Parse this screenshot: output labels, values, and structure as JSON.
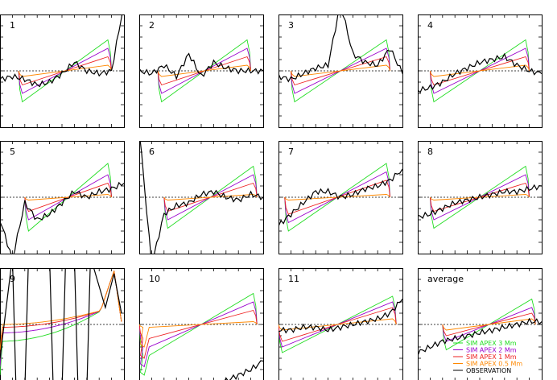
{
  "chart_data": {
    "type": "line",
    "layout": "grid-3x4",
    "x": [
      0,
      10,
      20,
      30,
      40,
      50,
      60,
      70,
      80,
      90,
      100
    ],
    "ylim": [
      -1,
      1
    ],
    "reference_line": {
      "y": 0,
      "style": "dotted"
    },
    "series_colors": {
      "SIM APEX 3 Mm": "#22dd22",
      "SIM APEX 2 Mm": "#9900cc",
      "SIM APEX 1 Mm": "#ee2222",
      "SIM APEX 0.5 Mm": "#ff8800",
      "OBSERVATION": "#000000"
    },
    "legend": {
      "panel": "average",
      "placement": "bottom-right",
      "entries": [
        {
          "name": "SIM APEX 3 Mm",
          "color": "#22dd22"
        },
        {
          "name": "SIM APEX 2 Mm",
          "color": "#9900cc"
        },
        {
          "name": "SIM APEX 1 Mm",
          "color": "#ee2222"
        },
        {
          "name": "SIM APEX 0.5 Mm",
          "color": "#ff8800"
        },
        {
          "name": "OBSERVATION",
          "color": "#000000"
        }
      ]
    },
    "panels": [
      {
        "label": "1",
        "kind": "linear",
        "xstart": 15,
        "xend": 90,
        "amp": [
          0.55,
          0.4,
          0.25,
          0.1
        ],
        "observation": [
          -0.15,
          -0.1,
          -0.15,
          -0.25,
          -0.2,
          -0.05,
          0.15,
          0.0,
          -0.05,
          0.0,
          1.2
        ]
      },
      {
        "label": "2",
        "kind": "linear",
        "xstart": 15,
        "xend": 90,
        "amp": [
          0.55,
          0.4,
          0.25,
          0.1
        ],
        "observation": [
          0.0,
          -0.05,
          0.1,
          -0.1,
          0.3,
          -0.1,
          0.15,
          0.05,
          0.0,
          0.0,
          0.0
        ]
      },
      {
        "label": "3",
        "kind": "linear",
        "xstart": 10,
        "xend": 90,
        "amp": [
          0.55,
          0.4,
          0.25,
          0.1
        ],
        "observation": [
          -0.1,
          -0.15,
          -0.05,
          0.05,
          0.1,
          1.2,
          0.3,
          0.15,
          0.1,
          0.4,
          -0.05
        ]
      },
      {
        "label": "4",
        "kind": "linear",
        "xstart": 10,
        "xend": 90,
        "amp": [
          0.55,
          0.4,
          0.25,
          0.1
        ],
        "observation": [
          -0.35,
          -0.3,
          -0.2,
          -0.05,
          0.05,
          0.15,
          0.2,
          0.25,
          0.1,
          0.0,
          -0.05
        ]
      },
      {
        "label": "5",
        "kind": "linear",
        "xstart": 20,
        "xend": 90,
        "amp": [
          0.6,
          0.4,
          0.25,
          0.05
        ],
        "observation": [
          -0.4,
          -1.1,
          -0.1,
          -0.4,
          -0.3,
          -0.1,
          0.1,
          0.0,
          0.1,
          0.15,
          0.25
        ]
      },
      {
        "label": "6",
        "kind": "linear",
        "xstart": 20,
        "xend": 95,
        "amp": [
          0.55,
          0.4,
          0.25,
          0.05
        ],
        "observation": [
          1.2,
          -1.2,
          -0.3,
          -0.15,
          -0.1,
          0.05,
          0.1,
          0.0,
          -0.05,
          0.05,
          0.0
        ]
      },
      {
        "label": "7",
        "kind": "linear",
        "xstart": 5,
        "xend": 90,
        "amp": [
          0.6,
          0.45,
          0.3,
          0.05
        ],
        "observation": [
          -0.5,
          -0.3,
          -0.1,
          0.1,
          0.1,
          0.0,
          0.05,
          0.15,
          0.2,
          0.3,
          0.5
        ]
      },
      {
        "label": "8",
        "kind": "linear",
        "xstart": 10,
        "xend": 90,
        "amp": [
          0.55,
          0.4,
          0.25,
          0.05
        ],
        "observation": [
          -0.35,
          -0.3,
          -0.2,
          -0.1,
          -0.05,
          0.0,
          0.05,
          0.1,
          0.1,
          0.15,
          0.2
        ]
      },
      {
        "label": "9",
        "kind": "rising",
        "xstart": 0,
        "xend": 100,
        "observation_spikes": [
          10,
          20,
          40,
          50,
          60,
          70
        ]
      },
      {
        "label": "10",
        "kind": "linear-dip",
        "xstart": 0,
        "xend": 95,
        "amp": [
          0.55,
          0.4,
          0.25,
          0.05
        ],
        "observation": [
          -1.1,
          -1.1,
          -1.1,
          -1.1,
          -1.1,
          -1.1,
          -1.1,
          -1.0,
          -0.9,
          -0.8,
          -0.65
        ]
      },
      {
        "label": "11",
        "kind": "linear",
        "xstart": 0,
        "xend": 95,
        "amp": [
          0.5,
          0.4,
          0.3,
          0.1
        ],
        "observation": [
          -0.1,
          -0.1,
          -0.05,
          -0.05,
          -0.1,
          -0.05,
          0.0,
          0.05,
          0.1,
          0.2,
          0.45
        ]
      },
      {
        "label": "average",
        "kind": "linear",
        "xstart": 20,
        "xend": 95,
        "amp": [
          0.45,
          0.3,
          0.2,
          0.1
        ],
        "observation": [
          -0.5,
          -0.4,
          -0.3,
          -0.25,
          -0.2,
          -0.15,
          -0.1,
          -0.05,
          0.0,
          0.05,
          0.05
        ]
      }
    ]
  }
}
